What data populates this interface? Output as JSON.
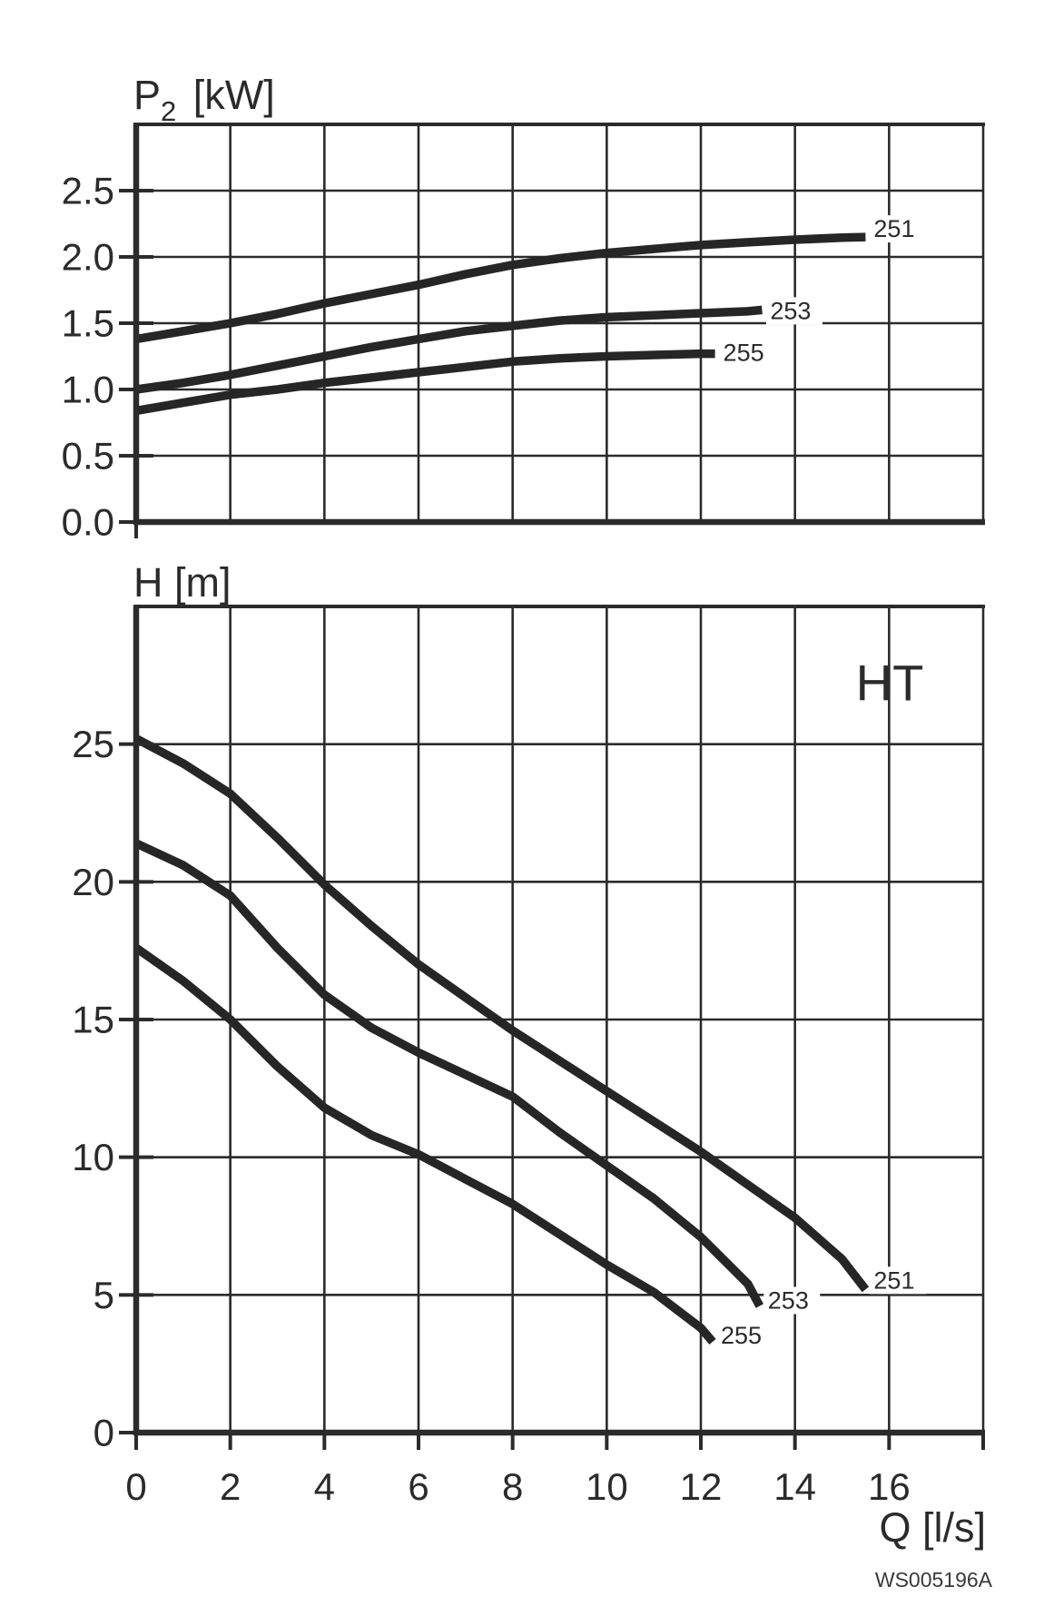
{
  "figure": {
    "code": "WS005196A"
  },
  "charts": {
    "power": {
      "title_main": "P",
      "title_sub": "2",
      "title_unit": " [kW]"
    },
    "head": {
      "title": "H [m]",
      "annotation": "HT",
      "xlabel": "Q [l/s]"
    }
  },
  "chart_data": [
    {
      "id": "power",
      "type": "line",
      "title": "P2 [kW]",
      "ylabel": "P2 [kW]",
      "xlabel": "Q [l/s]",
      "xlim": [
        0,
        18
      ],
      "ylim": [
        0,
        3.0
      ],
      "x_grid_step": 2,
      "y_grid_step": 0.5,
      "grid": true,
      "legend": "end-of-curve labels",
      "ytick_labels": [
        "0.0",
        "0.5",
        "1.0",
        "1.5",
        "2.0",
        "2.5"
      ],
      "series": [
        {
          "name": "251",
          "label_dy": -9,
          "points": [
            [
              0,
              1.38
            ],
            [
              1,
              1.44
            ],
            [
              2,
              1.5
            ],
            [
              3,
              1.57
            ],
            [
              4,
              1.65
            ],
            [
              5,
              1.72
            ],
            [
              6,
              1.79
            ],
            [
              7,
              1.87
            ],
            [
              8,
              1.94
            ],
            [
              9,
              1.99
            ],
            [
              10,
              2.03
            ],
            [
              11,
              2.06
            ],
            [
              12,
              2.09
            ],
            [
              13,
              2.11
            ],
            [
              14,
              2.13
            ],
            [
              15,
              2.145
            ],
            [
              15.5,
              2.15
            ]
          ]
        },
        {
          "name": "253",
          "label_dy": 1,
          "points": [
            [
              0,
              1.0
            ],
            [
              1,
              1.05
            ],
            [
              2,
              1.11
            ],
            [
              3,
              1.18
            ],
            [
              4,
              1.25
            ],
            [
              5,
              1.32
            ],
            [
              6,
              1.38
            ],
            [
              7,
              1.44
            ],
            [
              8,
              1.48
            ],
            [
              9,
              1.52
            ],
            [
              10,
              1.545
            ],
            [
              11,
              1.56
            ],
            [
              12,
              1.575
            ],
            [
              13,
              1.59
            ],
            [
              13.3,
              1.6
            ]
          ]
        },
        {
          "name": "255",
          "label_dy": -1,
          "points": [
            [
              0,
              0.84
            ],
            [
              1,
              0.9
            ],
            [
              2,
              0.96
            ],
            [
              3,
              1.0
            ],
            [
              4,
              1.05
            ],
            [
              5,
              1.09
            ],
            [
              6,
              1.13
            ],
            [
              7,
              1.17
            ],
            [
              8,
              1.21
            ],
            [
              9,
              1.235
            ],
            [
              10,
              1.25
            ],
            [
              11,
              1.26
            ],
            [
              12,
              1.27
            ],
            [
              12.3,
              1.27
            ]
          ]
        }
      ]
    },
    {
      "id": "head",
      "type": "line",
      "title": "H [m]",
      "ylabel": "H [m]",
      "xlabel": "Q [l/s]",
      "annotation": "HT",
      "xlim": [
        0,
        18
      ],
      "ylim": [
        0,
        30
      ],
      "x_grid_step": 2,
      "y_grid_step": 5,
      "grid": true,
      "legend": "end-of-curve labels",
      "ytick_labels": [
        "0",
        "5",
        "10",
        "15",
        "20",
        "25"
      ],
      "xtick_labels": [
        "0",
        "2",
        "4",
        "6",
        "8",
        "10",
        "12",
        "14",
        "16"
      ],
      "series": [
        {
          "name": "251",
          "label_dy": -10,
          "points": [
            [
              0,
              25.2
            ],
            [
              1,
              24.3
            ],
            [
              2,
              23.2
            ],
            [
              3,
              21.6
            ],
            [
              4,
              19.9
            ],
            [
              5,
              18.4
            ],
            [
              6,
              17.0
            ],
            [
              7,
              15.8
            ],
            [
              8,
              14.6
            ],
            [
              9,
              13.5
            ],
            [
              10,
              12.4
            ],
            [
              11,
              11.3
            ],
            [
              12,
              10.2
            ],
            [
              13,
              9.0
            ],
            [
              14,
              7.8
            ],
            [
              15,
              6.3
            ],
            [
              15.5,
              5.2
            ]
          ]
        },
        {
          "name": "253",
          "label_dy": -6,
          "points": [
            [
              0,
              21.4
            ],
            [
              1,
              20.6
            ],
            [
              2,
              19.5
            ],
            [
              3,
              17.6
            ],
            [
              4,
              15.9
            ],
            [
              5,
              14.7
            ],
            [
              6,
              13.8
            ],
            [
              7,
              13.0
            ],
            [
              8,
              12.2
            ],
            [
              9,
              10.9
            ],
            [
              10,
              9.7
            ],
            [
              11,
              8.5
            ],
            [
              12,
              7.1
            ],
            [
              13,
              5.4
            ],
            [
              13.25,
              4.6
            ]
          ]
        },
        {
          "name": "255",
          "label_dy": -7,
          "points": [
            [
              0,
              17.6
            ],
            [
              1,
              16.4
            ],
            [
              2,
              15.0
            ],
            [
              3,
              13.3
            ],
            [
              4,
              11.8
            ],
            [
              5,
              10.8
            ],
            [
              6,
              10.1
            ],
            [
              7,
              9.2
            ],
            [
              8,
              8.3
            ],
            [
              9,
              7.2
            ],
            [
              10,
              6.1
            ],
            [
              11,
              5.1
            ],
            [
              12,
              3.8
            ],
            [
              12.25,
              3.3
            ]
          ]
        }
      ]
    }
  ]
}
